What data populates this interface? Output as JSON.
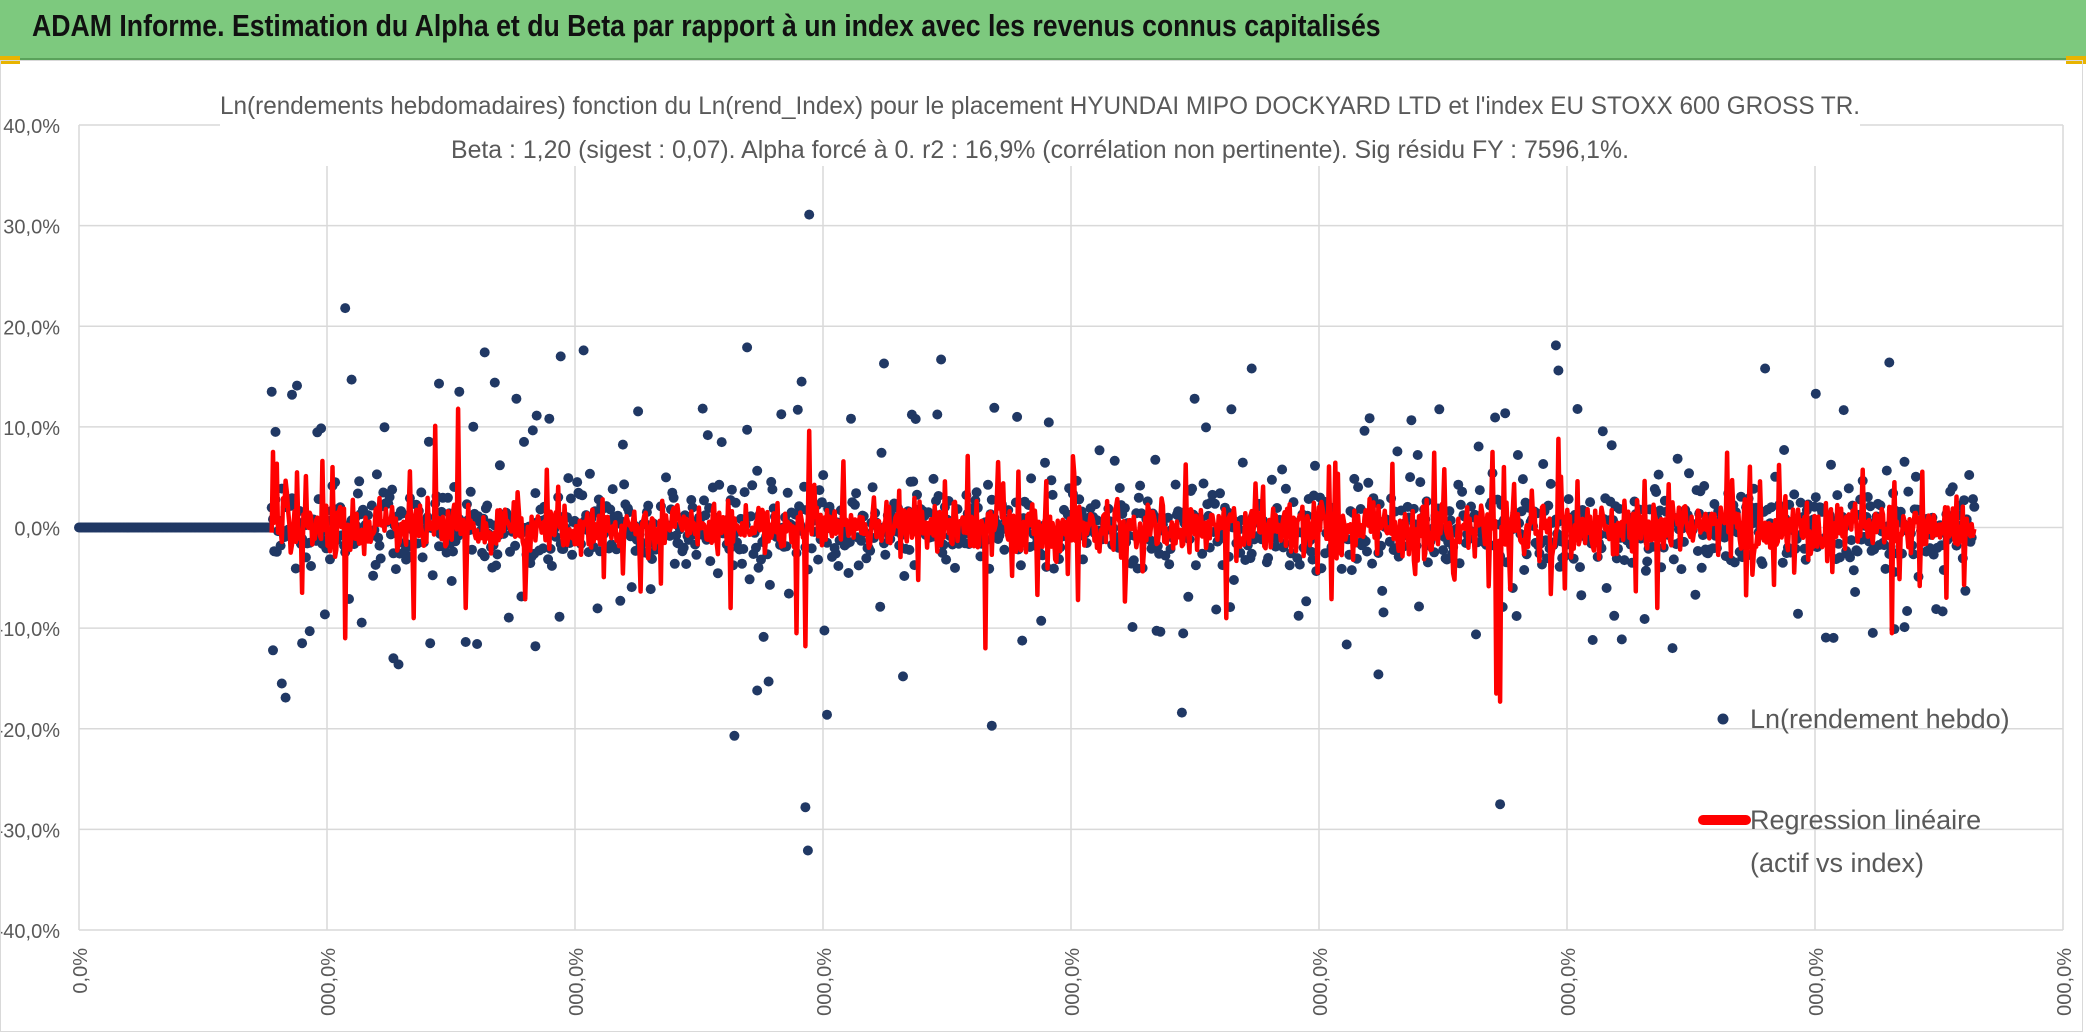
{
  "banner": {
    "title": "ADAM Informe. Estimation du Alpha et du Beta par rapport à un index avec les revenus connus capitalisés"
  },
  "colors": {
    "banner_bg": "#7dc97e",
    "corner": "#e8b400",
    "scatter": "#203864",
    "regression": "#ff0000",
    "grid": "#d9d9d9",
    "text": "#595959"
  },
  "chart_data": {
    "type": "scatter",
    "title_line1": "Ln(rendements hebdomadaires) fonction du Ln(rend_Index) pour le placement HYUNDAI MIPO DOCKYARD LTD et l'index EU STOXX 600 GROSS TR.",
    "title_line2": "Beta : 1,20 (sigest : 0,07). Alpha forcé à 0. r2 : 16,9% (corrélation non pertinente). Sig résidu FY : 7596,1%.",
    "beta": 1.2,
    "sigest": 0.07,
    "alpha": 0,
    "r2_percent": 16.9,
    "ylim": [
      -40,
      40
    ],
    "y_ticks": [
      40,
      30,
      20,
      10,
      0,
      -10,
      -20,
      -30,
      -40
    ],
    "y_tick_labels": [
      "40,0%",
      "30,0%",
      "20,0%",
      "10,0%",
      "0,0%",
      "-10,0%",
      "-20,0%",
      "-30,0%",
      "-40,0%"
    ],
    "x_tick_labels": [
      "0,0%",
      "000,0%",
      "000,0%",
      "000,0%",
      "000,0%",
      "000,0%",
      "000,0%",
      "000,0%",
      "000,0%"
    ],
    "xlim": [
      0,
      1565
    ],
    "series": [
      {
        "name": "Ln(rendement hebdo)",
        "kind": "markers",
        "zero_run": [
          0,
          150
        ],
        "active_range": [
          152,
          1495
        ],
        "noise_amplitude": 4.2
      },
      {
        "name": "Regression linéaire (actif vs index)",
        "kind": "line",
        "slope": 1.2
      }
    ],
    "outliers": [
      {
        "x": 152,
        "y": 13.5
      },
      {
        "x": 153,
        "y": -12.2
      },
      {
        "x": 155,
        "y": 9.5
      },
      {
        "x": 160,
        "y": -15.5
      },
      {
        "x": 163,
        "y": -16.9
      },
      {
        "x": 168,
        "y": 13.2
      },
      {
        "x": 172,
        "y": 14.1
      },
      {
        "x": 176,
        "y": -11.5
      },
      {
        "x": 182,
        "y": -10.3
      },
      {
        "x": 210,
        "y": 21.8
      },
      {
        "x": 215,
        "y": 14.7
      },
      {
        "x": 248,
        "y": -13.0
      },
      {
        "x": 252,
        "y": -13.6
      },
      {
        "x": 284,
        "y": 14.3
      },
      {
        "x": 300,
        "y": 13.5
      },
      {
        "x": 320,
        "y": 17.4
      },
      {
        "x": 328,
        "y": 14.4
      },
      {
        "x": 345,
        "y": 12.8
      },
      {
        "x": 360,
        "y": -11.8
      },
      {
        "x": 380,
        "y": 17.0
      },
      {
        "x": 398,
        "y": 17.6
      },
      {
        "x": 517,
        "y": -20.7
      },
      {
        "x": 527,
        "y": 17.9
      },
      {
        "x": 535,
        "y": -16.2
      },
      {
        "x": 544,
        "y": -15.3
      },
      {
        "x": 570,
        "y": 14.5
      },
      {
        "x": 573,
        "y": -27.8
      },
      {
        "x": 575,
        "y": -32.1
      },
      {
        "x": 576,
        "y": 31.1
      },
      {
        "x": 590,
        "y": -18.6
      },
      {
        "x": 635,
        "y": 16.3
      },
      {
        "x": 650,
        "y": -14.8
      },
      {
        "x": 680,
        "y": 16.7
      },
      {
        "x": 720,
        "y": -19.7
      },
      {
        "x": 722,
        "y": 11.9
      },
      {
        "x": 870,
        "y": -18.4
      },
      {
        "x": 880,
        "y": 12.8
      },
      {
        "x": 925,
        "y": 15.8
      },
      {
        "x": 1025,
        "y": -14.6
      },
      {
        "x": 1121,
        "y": -27.5
      },
      {
        "x": 1165,
        "y": 18.1
      },
      {
        "x": 1167,
        "y": 15.6
      },
      {
        "x": 1330,
        "y": 15.8
      },
      {
        "x": 1370,
        "y": 13.3
      },
      {
        "x": 1428,
        "y": 16.4
      },
      {
        "x": 1432,
        "y": -10.1
      },
      {
        "x": 1440,
        "y": -9.9
      }
    ],
    "regression_spikes": [
      {
        "x": 153,
        "y": 7.5
      },
      {
        "x": 200,
        "y": 6.0
      },
      {
        "x": 210,
        "y": -11.0
      },
      {
        "x": 264,
        "y": -9.0
      },
      {
        "x": 281,
        "y": 10.1
      },
      {
        "x": 299,
        "y": 11.8
      },
      {
        "x": 305,
        "y": -8.0
      },
      {
        "x": 514,
        "y": -8.0
      },
      {
        "x": 566,
        "y": -10.5
      },
      {
        "x": 573,
        "y": -11.8
      },
      {
        "x": 576,
        "y": 9.6
      },
      {
        "x": 715,
        "y": -12.0
      },
      {
        "x": 725,
        "y": 6.5
      },
      {
        "x": 905,
        "y": -9.0
      },
      {
        "x": 1115,
        "y": 7.5
      },
      {
        "x": 1118,
        "y": -16.5
      },
      {
        "x": 1121,
        "y": -17.3
      },
      {
        "x": 1124,
        "y": 6.0
      },
      {
        "x": 1167,
        "y": 8.8
      },
      {
        "x": 1245,
        "y": -8.0
      },
      {
        "x": 1430,
        "y": -10.5
      },
      {
        "x": 1432,
        "y": 4.5
      }
    ],
    "legend": {
      "marker_label": "Ln(rendement hebdo)",
      "line_label_1": "Regression linéaire",
      "line_label_2": "(actif vs index)",
      "position": "right"
    }
  }
}
